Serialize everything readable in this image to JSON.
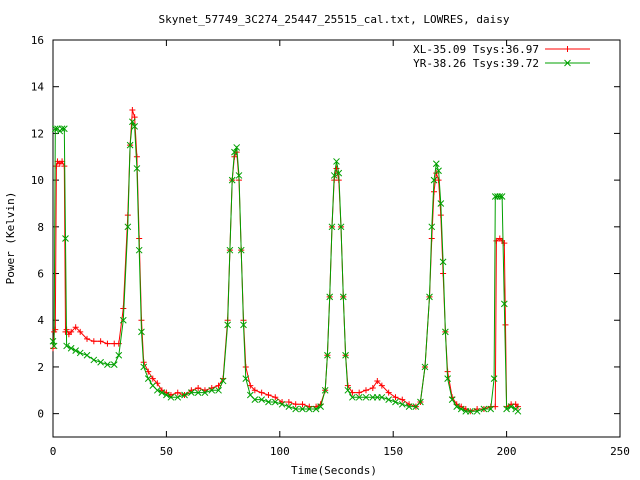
{
  "chart_data": {
    "type": "line",
    "title": "Skynet_57749_3C274_25447_25515_cal.txt, LOWRES, daisy",
    "xlabel": "Time(Seconds)",
    "ylabel": "Power (Kelvin)",
    "xlim": [
      0,
      250
    ],
    "ylim": [
      -1,
      16
    ],
    "xticks": [
      0,
      50,
      100,
      150,
      200,
      250
    ],
    "yticks": [
      0,
      2,
      4,
      6,
      8,
      10,
      12,
      14,
      16
    ],
    "grid": false,
    "legend_position": "top-right",
    "series": [
      {
        "name": "XL-35.09 Tsys:36.97",
        "color": "#ff0000",
        "marker": "plus",
        "points": [
          [
            0,
            2.8
          ],
          [
            0.5,
            3.5
          ],
          [
            1,
            3.6
          ],
          [
            1.5,
            10.6
          ],
          [
            2,
            10.8
          ],
          [
            3,
            10.7
          ],
          [
            4,
            10.8
          ],
          [
            5,
            10.6
          ],
          [
            5.5,
            3.5
          ],
          [
            6,
            3.6
          ],
          [
            7,
            3.4
          ],
          [
            8,
            3.5
          ],
          [
            10,
            3.7
          ],
          [
            12,
            3.5
          ],
          [
            15,
            3.2
          ],
          [
            18,
            3.1
          ],
          [
            21,
            3.1
          ],
          [
            24,
            3.0
          ],
          [
            27,
            3.0
          ],
          [
            29,
            3.0
          ],
          [
            31,
            4.5
          ],
          [
            33,
            8.5
          ],
          [
            34,
            11.5
          ],
          [
            35,
            13.0
          ],
          [
            36,
            12.7
          ],
          [
            37,
            11.0
          ],
          [
            38,
            7.5
          ],
          [
            39,
            4.0
          ],
          [
            40,
            2.2
          ],
          [
            42,
            1.8
          ],
          [
            44,
            1.5
          ],
          [
            46,
            1.3
          ],
          [
            48,
            1.0
          ],
          [
            50,
            0.9
          ],
          [
            52,
            0.8
          ],
          [
            55,
            0.9
          ],
          [
            58,
            0.8
          ],
          [
            61,
            1.0
          ],
          [
            64,
            1.1
          ],
          [
            67,
            1.0
          ],
          [
            70,
            1.1
          ],
          [
            73,
            1.2
          ],
          [
            75,
            1.5
          ],
          [
            77,
            4.0
          ],
          [
            78,
            7.0
          ],
          [
            79,
            10.0
          ],
          [
            80,
            11.0
          ],
          [
            81,
            11.2
          ],
          [
            82,
            10.0
          ],
          [
            83,
            7.0
          ],
          [
            84,
            4.0
          ],
          [
            85,
            2.0
          ],
          [
            87,
            1.2
          ],
          [
            89,
            1.0
          ],
          [
            92,
            0.9
          ],
          [
            95,
            0.8
          ],
          [
            98,
            0.7
          ],
          [
            101,
            0.5
          ],
          [
            104,
            0.5
          ],
          [
            107,
            0.4
          ],
          [
            110,
            0.4
          ],
          [
            113,
            0.3
          ],
          [
            116,
            0.3
          ],
          [
            118,
            0.4
          ],
          [
            120,
            1.0
          ],
          [
            121,
            2.5
          ],
          [
            122,
            5.0
          ],
          [
            123,
            8.0
          ],
          [
            124,
            10.0
          ],
          [
            125,
            10.5
          ],
          [
            126,
            10.0
          ],
          [
            127,
            8.0
          ],
          [
            128,
            5.0
          ],
          [
            129,
            2.5
          ],
          [
            130,
            1.2
          ],
          [
            132,
            0.9
          ],
          [
            135,
            0.9
          ],
          [
            138,
            1.0
          ],
          [
            141,
            1.1
          ],
          [
            143,
            1.4
          ],
          [
            145,
            1.2
          ],
          [
            148,
            0.9
          ],
          [
            151,
            0.7
          ],
          [
            154,
            0.6
          ],
          [
            157,
            0.4
          ],
          [
            160,
            0.3
          ],
          [
            162,
            0.5
          ],
          [
            164,
            2.0
          ],
          [
            166,
            5.0
          ],
          [
            167,
            7.5
          ],
          [
            168,
            9.5
          ],
          [
            169,
            10.3
          ],
          [
            170,
            10.0
          ],
          [
            171,
            8.5
          ],
          [
            172,
            6.0
          ],
          [
            173,
            3.5
          ],
          [
            174,
            1.8
          ],
          [
            176,
            0.7
          ],
          [
            178,
            0.4
          ],
          [
            180,
            0.3
          ],
          [
            182,
            0.2
          ],
          [
            184,
            0.1
          ],
          [
            187,
            0.2
          ],
          [
            190,
            0.2
          ],
          [
            193,
            0.3
          ],
          [
            195,
            0.3
          ],
          [
            195.5,
            7.4
          ],
          [
            197,
            7.5
          ],
          [
            198,
            7.4
          ],
          [
            199,
            7.3
          ],
          [
            199.5,
            3.8
          ],
          [
            200,
            0.3
          ],
          [
            202,
            0.4
          ],
          [
            204,
            0.4
          ],
          [
            205,
            0.3
          ]
        ]
      },
      {
        "name": "YR-38.26 Tsys:39.72",
        "color": "#00a000",
        "marker": "cross",
        "points": [
          [
            0,
            3.1
          ],
          [
            0.5,
            2.9
          ],
          [
            1,
            12.2
          ],
          [
            2,
            12.2
          ],
          [
            3,
            12.1
          ],
          [
            4,
            12.2
          ],
          [
            5,
            12.2
          ],
          [
            5.5,
            7.5
          ],
          [
            6,
            2.9
          ],
          [
            8,
            2.8
          ],
          [
            10,
            2.7
          ],
          [
            12,
            2.6
          ],
          [
            15,
            2.5
          ],
          [
            18,
            2.3
          ],
          [
            21,
            2.2
          ],
          [
            24,
            2.1
          ],
          [
            27,
            2.1
          ],
          [
            29,
            2.5
          ],
          [
            31,
            4.0
          ],
          [
            33,
            8.0
          ],
          [
            34,
            11.5
          ],
          [
            35,
            12.5
          ],
          [
            36,
            12.3
          ],
          [
            37,
            10.5
          ],
          [
            38,
            7.0
          ],
          [
            39,
            3.5
          ],
          [
            40,
            2.0
          ],
          [
            42,
            1.5
          ],
          [
            44,
            1.2
          ],
          [
            46,
            1.0
          ],
          [
            48,
            0.9
          ],
          [
            50,
            0.8
          ],
          [
            52,
            0.7
          ],
          [
            55,
            0.7
          ],
          [
            58,
            0.8
          ],
          [
            61,
            0.9
          ],
          [
            64,
            0.9
          ],
          [
            67,
            0.9
          ],
          [
            70,
            1.0
          ],
          [
            73,
            1.0
          ],
          [
            75,
            1.4
          ],
          [
            77,
            3.8
          ],
          [
            78,
            7.0
          ],
          [
            79,
            10.0
          ],
          [
            80,
            11.2
          ],
          [
            81,
            11.4
          ],
          [
            82,
            10.2
          ],
          [
            83,
            7.0
          ],
          [
            84,
            3.8
          ],
          [
            85,
            1.5
          ],
          [
            87,
            0.8
          ],
          [
            89,
            0.6
          ],
          [
            92,
            0.6
          ],
          [
            95,
            0.5
          ],
          [
            98,
            0.5
          ],
          [
            101,
            0.4
          ],
          [
            104,
            0.3
          ],
          [
            107,
            0.2
          ],
          [
            110,
            0.2
          ],
          [
            113,
            0.2
          ],
          [
            116,
            0.2
          ],
          [
            118,
            0.3
          ],
          [
            120,
            1.0
          ],
          [
            121,
            2.5
          ],
          [
            122,
            5.0
          ],
          [
            123,
            8.0
          ],
          [
            124,
            10.2
          ],
          [
            125,
            10.8
          ],
          [
            126,
            10.3
          ],
          [
            127,
            8.0
          ],
          [
            128,
            5.0
          ],
          [
            129,
            2.5
          ],
          [
            130,
            1.0
          ],
          [
            132,
            0.7
          ],
          [
            135,
            0.7
          ],
          [
            138,
            0.7
          ],
          [
            141,
            0.7
          ],
          [
            143,
            0.7
          ],
          [
            145,
            0.7
          ],
          [
            148,
            0.6
          ],
          [
            151,
            0.5
          ],
          [
            154,
            0.4
          ],
          [
            157,
            0.3
          ],
          [
            160,
            0.3
          ],
          [
            162,
            0.5
          ],
          [
            164,
            2.0
          ],
          [
            166,
            5.0
          ],
          [
            167,
            8.0
          ],
          [
            168,
            10.0
          ],
          [
            169,
            10.7
          ],
          [
            170,
            10.4
          ],
          [
            171,
            9.0
          ],
          [
            172,
            6.5
          ],
          [
            173,
            3.5
          ],
          [
            174,
            1.5
          ],
          [
            176,
            0.6
          ],
          [
            178,
            0.3
          ],
          [
            180,
            0.2
          ],
          [
            182,
            0.1
          ],
          [
            184,
            0.1
          ],
          [
            187,
            0.1
          ],
          [
            190,
            0.2
          ],
          [
            193,
            0.2
          ],
          [
            194.5,
            1.5
          ],
          [
            195,
            9.3
          ],
          [
            196,
            9.3
          ],
          [
            197,
            9.3
          ],
          [
            198,
            9.3
          ],
          [
            199,
            4.7
          ],
          [
            200,
            0.2
          ],
          [
            202,
            0.3
          ],
          [
            204,
            0.2
          ],
          [
            205,
            0.1
          ]
        ]
      }
    ]
  }
}
